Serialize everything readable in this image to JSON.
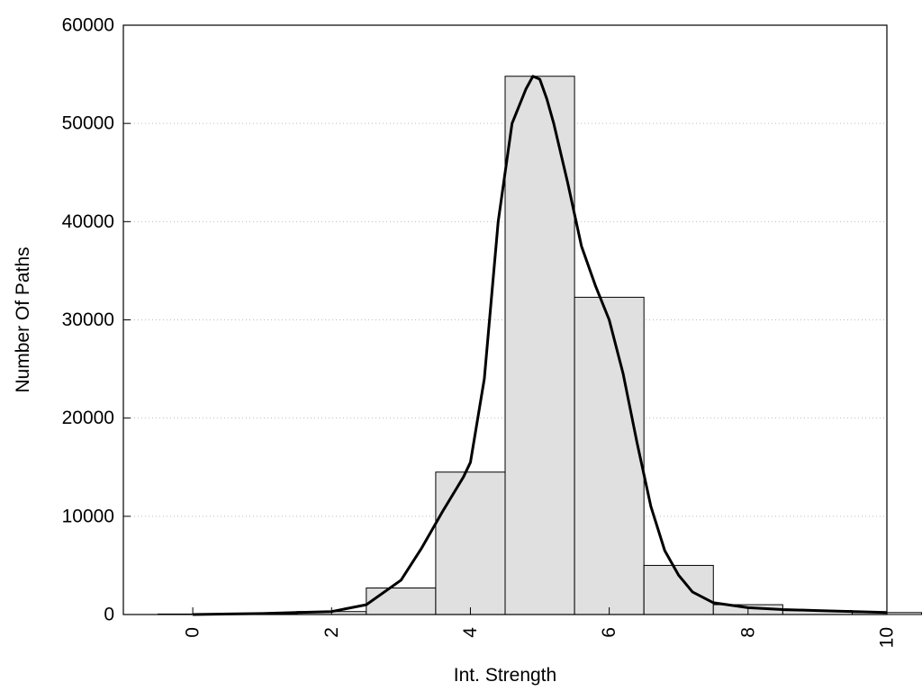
{
  "chart_data": {
    "type": "bar",
    "xlabel": "Int. Strength",
    "ylabel": "Number Of Paths",
    "xlim": [
      -1,
      10
    ],
    "ylim": [
      0,
      60000
    ],
    "x_ticks": [
      "0",
      "2",
      "4",
      "6",
      "8",
      "10"
    ],
    "y_ticks": [
      "0",
      "10000",
      "20000",
      "30000",
      "40000",
      "50000",
      "60000"
    ],
    "grid": "horizontal dotted",
    "bar_color": "#e0e0e0",
    "bins": [
      0,
      1,
      2,
      3,
      4,
      5,
      6,
      7,
      8,
      9,
      10
    ],
    "values": [
      50,
      100,
      300,
      2700,
      14500,
      54800,
      32300,
      5000,
      1000,
      400,
      200
    ],
    "series": [
      {
        "type": "line",
        "x": [
          0,
          1,
          1.5,
          2,
          2.5,
          3,
          3.3,
          3.6,
          3.9,
          4,
          4.2,
          4.4,
          4.6,
          4.8,
          4.9,
          5,
          5.1,
          5.2,
          5.4,
          5.6,
          5.8,
          6,
          6.2,
          6.4,
          6.6,
          6.8,
          7,
          7.2,
          7.5,
          8,
          8.5,
          9,
          10
        ],
        "y": [
          0,
          100,
          200,
          300,
          1000,
          3500,
          6800,
          10500,
          14000,
          15500,
          24000,
          40000,
          50000,
          53500,
          54800,
          54500,
          52500,
          50000,
          44000,
          37500,
          33500,
          30000,
          24500,
          17500,
          11000,
          6500,
          4000,
          2300,
          1200,
          700,
          500,
          400,
          200
        ]
      }
    ]
  }
}
